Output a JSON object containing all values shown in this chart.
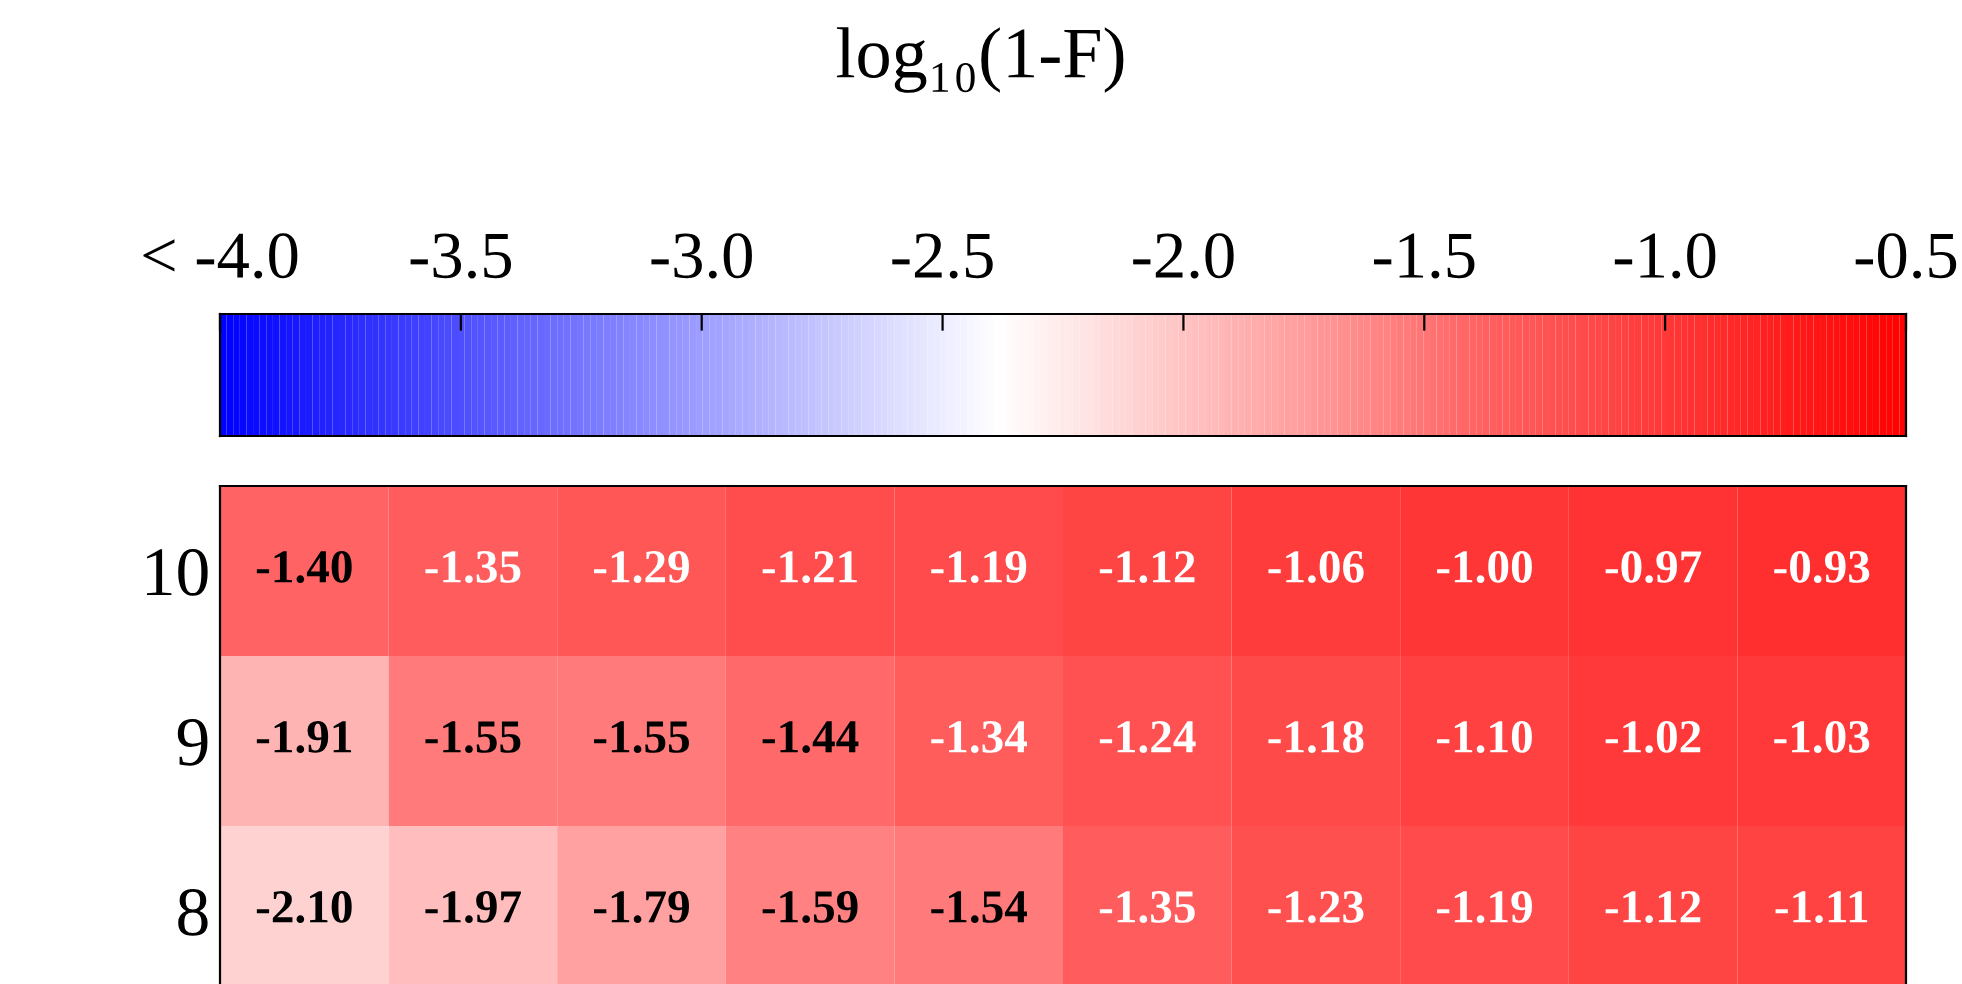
{
  "chart_data": {
    "type": "heatmap",
    "title": "log₁₀(1-F)",
    "categories": [
      null,
      null,
      null,
      null,
      null,
      null,
      null,
      null,
      null,
      null
    ],
    "y_categories": [
      "10",
      "9",
      "8"
    ],
    "cells": [
      [
        -1.4,
        -1.35,
        -1.29,
        -1.21,
        -1.19,
        -1.12,
        -1.06,
        -1.0,
        -0.97,
        -0.93
      ],
      [
        -1.91,
        -1.55,
        -1.55,
        -1.44,
        -1.34,
        -1.24,
        -1.18,
        -1.1,
        -1.02,
        -1.03
      ],
      [
        -2.1,
        -1.97,
        -1.79,
        -1.59,
        -1.54,
        -1.35,
        -1.23,
        -1.19,
        -1.12,
        -1.11
      ]
    ],
    "cell_labels": [
      [
        "-1.40",
        "-1.35",
        "-1.29",
        "-1.21",
        "-1.19",
        "-1.12",
        "-1.06",
        "-1.00",
        "-0.97",
        "-0.93"
      ],
      [
        "-1.91",
        "-1.55",
        "-1.55",
        "-1.44",
        "-1.34",
        "-1.24",
        "-1.18",
        "-1.10",
        "-1.02",
        "-1.03"
      ],
      [
        "-2.10",
        "-1.97",
        "-1.79",
        "-1.59",
        "-1.54",
        "-1.35",
        "-1.23",
        "-1.19",
        "-1.12",
        "-1.11"
      ]
    ],
    "clim": [
      -4.0,
      -0.5
    ],
    "cticks": [
      {
        "value": -4.0,
        "label": "< -4.0"
      },
      {
        "value": -3.5,
        "label": "-3.5"
      },
      {
        "value": -3.0,
        "label": "-3.0"
      },
      {
        "value": -2.5,
        "label": "-2.5"
      },
      {
        "value": -2.0,
        "label": "-2.0"
      },
      {
        "value": -1.5,
        "label": "-1.5"
      },
      {
        "value": -1.0,
        "label": "-1.0"
      },
      {
        "value": -0.5,
        "label": "-0.5"
      }
    ]
  }
}
